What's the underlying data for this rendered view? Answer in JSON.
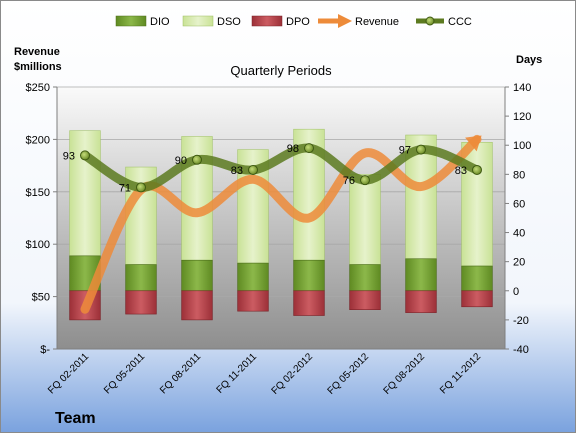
{
  "chart_data": {
    "type": "bar",
    "title": "Quarterly Periods",
    "footer": "Team",
    "categories": [
      "FQ 02-2011",
      "FQ 05-2011",
      "FQ 08-2011",
      "FQ 11-2011",
      "FQ 02-2012",
      "FQ 05-2012",
      "FQ 08-2012",
      "FQ 11-2012"
    ],
    "left_axis": {
      "label_line1": "Revenue",
      "label_line2": "$millions",
      "min": 0,
      "max": 250,
      "step": 50,
      "tick_labels": [
        "$-",
        "$50",
        "$100",
        "$150",
        "$200",
        "$250"
      ]
    },
    "right_axis": {
      "label": "Days",
      "min": -40,
      "max": 140,
      "step": 20,
      "tick_labels": [
        "-40",
        "-20",
        "0",
        "20",
        "40",
        "60",
        "80",
        "100",
        "120",
        "140"
      ]
    },
    "legend": {
      "position": "top",
      "entries": [
        "DIO",
        "DSO",
        "DPO",
        "Revenue",
        "CCC"
      ]
    },
    "series": [
      {
        "name": "DIO",
        "axis": "right",
        "kind": "stacked-bar",
        "color": "#6E9A2C",
        "values": [
          24,
          18,
          21,
          19,
          21,
          18,
          22,
          17
        ]
      },
      {
        "name": "DSO",
        "axis": "right",
        "kind": "stacked-bar",
        "color": "#D3E8A8",
        "values": [
          86,
          67,
          85,
          78,
          90,
          62,
          85,
          85
        ]
      },
      {
        "name": "DPO",
        "axis": "right",
        "kind": "stacked-bar",
        "color": "#B5434A",
        "values": [
          -20,
          -16,
          -20,
          -14,
          -17,
          -13,
          -15,
          -11
        ]
      },
      {
        "name": "Revenue",
        "axis": "left",
        "kind": "line",
        "color": "#ED8B3A",
        "values": [
          38,
          152,
          130,
          162,
          125,
          187,
          155,
          200
        ]
      },
      {
        "name": "CCC",
        "axis": "right",
        "kind": "line",
        "color": "#5C7A20",
        "values": [
          93,
          71,
          90,
          83,
          98,
          76,
          97,
          83
        ]
      }
    ],
    "grid": true
  }
}
